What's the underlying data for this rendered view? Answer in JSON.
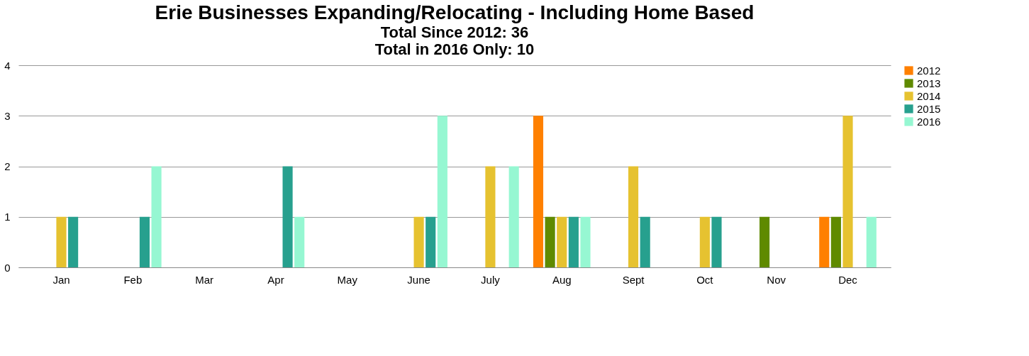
{
  "chart_data": {
    "type": "bar",
    "title": "Erie Businesses Expanding/Relocating - Including Home Based",
    "subtitle": "Total Since 2012: 36\nTotal in 2016 Only: 10",
    "categories": [
      "Jan",
      "Feb",
      "Mar",
      "Apr",
      "May",
      "June",
      "July",
      "Aug",
      "Sept",
      "Oct",
      "Nov",
      "Dec"
    ],
    "series": [
      {
        "name": "2012",
        "color": "#ff8000",
        "values": [
          0,
          0,
          0,
          0,
          0,
          0,
          0,
          3,
          0,
          0,
          0,
          1
        ]
      },
      {
        "name": "2013",
        "color": "#5f8a00",
        "values": [
          0,
          0,
          0,
          0,
          0,
          0,
          0,
          1,
          0,
          0,
          1,
          1
        ]
      },
      {
        "name": "2014",
        "color": "#e6c230",
        "values": [
          1,
          0,
          0,
          0,
          0,
          1,
          2,
          1,
          2,
          1,
          0,
          3
        ]
      },
      {
        "name": "2015",
        "color": "#27a08e",
        "values": [
          1,
          1,
          0,
          2,
          0,
          1,
          0,
          1,
          1,
          1,
          0,
          0
        ]
      },
      {
        "name": "2016",
        "color": "#96f7d2",
        "values": [
          0,
          2,
          0,
          1,
          0,
          3,
          2,
          1,
          0,
          0,
          0,
          1
        ]
      }
    ],
    "ylim": [
      0,
      4
    ],
    "yticks": [
      0,
      1,
      2,
      3,
      4
    ],
    "grid": "y",
    "legend": "right"
  }
}
